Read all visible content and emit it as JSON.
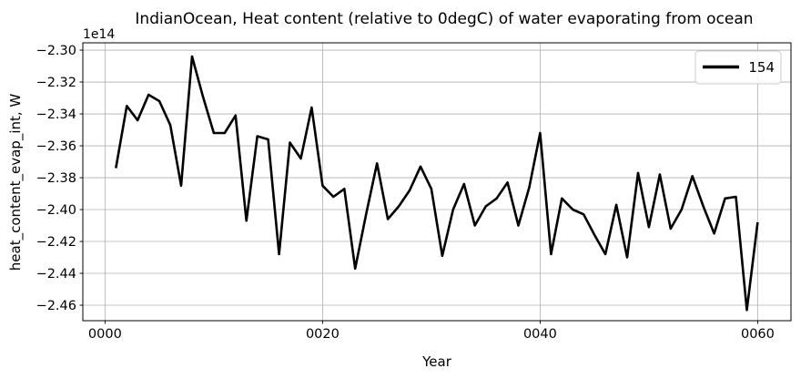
{
  "title": "IndianOcean, Heat content (relative to 0degC) of water evaporating from ocean",
  "chart_data": {
    "type": "line",
    "title": "IndianOcean, Heat content (relative to 0degC) of water evaporating from ocean",
    "xlabel": "Year",
    "ylabel": "heat_content_evap_int, W",
    "offset_text": "1e14",
    "value_multiplier": 100000000000000.0,
    "grid": true,
    "grid_color": "#b0b0b0",
    "line_color": "#000000",
    "background": "#ffffff",
    "legend": {
      "position": "upper right",
      "entries": [
        {
          "label": "154",
          "color": "#000000"
        }
      ]
    },
    "x": [
      1,
      2,
      3,
      4,
      5,
      6,
      7,
      8,
      9,
      10,
      11,
      12,
      13,
      14,
      15,
      16,
      17,
      18,
      19,
      20,
      21,
      22,
      23,
      24,
      25,
      26,
      27,
      28,
      29,
      30,
      31,
      32,
      33,
      34,
      35,
      36,
      37,
      38,
      39,
      40,
      41,
      42,
      43,
      44,
      45,
      46,
      47,
      48,
      49,
      50,
      51,
      52,
      53,
      54,
      55,
      56,
      57,
      58,
      59,
      60
    ],
    "series": [
      {
        "name": "154",
        "values": [
          -2.374,
          -2.335,
          -2.344,
          -2.328,
          -2.332,
          -2.347,
          -2.385,
          -2.304,
          -2.329,
          -2.352,
          -2.352,
          -2.341,
          -2.407,
          -2.354,
          -2.356,
          -2.428,
          -2.358,
          -2.368,
          -2.336,
          -2.385,
          -2.392,
          -2.387,
          -2.437,
          -2.403,
          -2.371,
          -2.406,
          -2.398,
          -2.388,
          -2.373,
          -2.387,
          -2.429,
          -2.4,
          -2.384,
          -2.41,
          -2.398,
          -2.393,
          -2.383,
          -2.41,
          -2.386,
          -2.352,
          -2.428,
          -2.393,
          -2.4,
          -2.403,
          -2.416,
          -2.428,
          -2.397,
          -2.43,
          -2.377,
          -2.411,
          -2.378,
          -2.412,
          -2.4,
          -2.379,
          -2.398,
          -2.415,
          -2.393,
          -2.392,
          -2.463,
          -2.408
        ]
      }
    ],
    "xlim": [
      -2.04,
      63.06
    ],
    "ylim": [
      -2.4697,
      -2.2954
    ],
    "xticks": {
      "values": [
        0,
        20,
        40,
        60
      ],
      "labels": [
        "0000",
        "0020",
        "0040",
        "0060"
      ]
    },
    "yticks": {
      "values": [
        -2.3,
        -2.32,
        -2.34,
        -2.36,
        -2.38,
        -2.4,
        -2.42,
        -2.44,
        -2.46
      ],
      "labels": [
        "−2.30",
        "−2.32",
        "−2.34",
        "−2.36",
        "−2.38",
        "−2.40",
        "−2.42",
        "−2.44",
        "−2.46"
      ]
    }
  }
}
